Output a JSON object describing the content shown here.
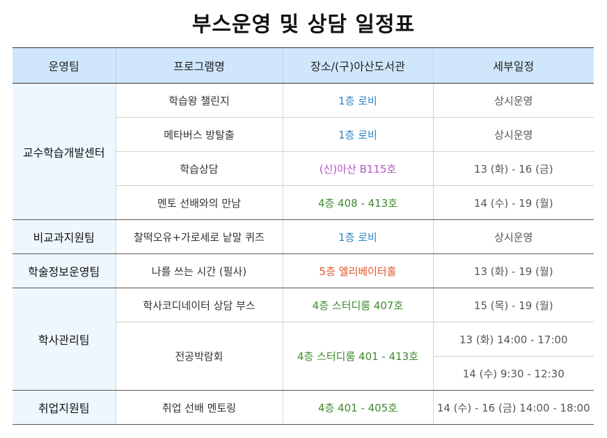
{
  "title": "부스운영 및 상담 일정표",
  "headers": [
    "운영팀",
    "프로그램명",
    "장소/(구)아산도서관",
    "세부일정"
  ],
  "teams": {
    "t1": "교수학습개발센터",
    "t2": "비교과지원팀",
    "t3": "학술정보운영팀",
    "t4": "학사관리팀",
    "t5": "취업지원팀"
  },
  "rows": [
    {
      "program": "학습왕 챌린지",
      "place": "1층 로비",
      "schedule": "상시운영"
    },
    {
      "program": "메타버스 방탈출",
      "place": "1층 로비",
      "schedule": "상시운영"
    },
    {
      "program": "학습상담",
      "place": "(신)아산 B115호",
      "schedule": "13 (화) - 16 (금)"
    },
    {
      "program": "멘토 선배와의 만남",
      "place": "4층 408 - 413호",
      "schedule": "14 (수) - 19 (월)"
    },
    {
      "program": "찰떡오유+가로세로 낱말 퀴즈",
      "place": "1층 로비",
      "schedule": "상시운영"
    },
    {
      "program": "나를 쓰는 시간 (필사)",
      "place": "5층 엘리베이터홀",
      "schedule": "13 (화) - 19 (월)"
    },
    {
      "program": "학사코디네이터 상담 부스",
      "place": "4층 스터디룸 407호",
      "schedule": "15 (목) - 19 (월)"
    },
    {
      "program": "전공박람회",
      "place": "4층 스터디룸 401 - 413호",
      "schedule": "13 (화) 14:00 - 17:00",
      "schedule2": "14 (수) 9:30 - 12:30"
    },
    {
      "program": "취업 선배 멘토링",
      "place": "4층 401 - 405호",
      "schedule": "14 (수) - 16 (금) 14:00 - 18:00"
    }
  ],
  "colors": {
    "header_bg": "#cfe6fb",
    "team_bg": "#eef7fe",
    "place_blue": "#2a86c4",
    "place_purple": "#b355c6",
    "place_green": "#3d8a2c",
    "place_red": "#e0542a"
  }
}
